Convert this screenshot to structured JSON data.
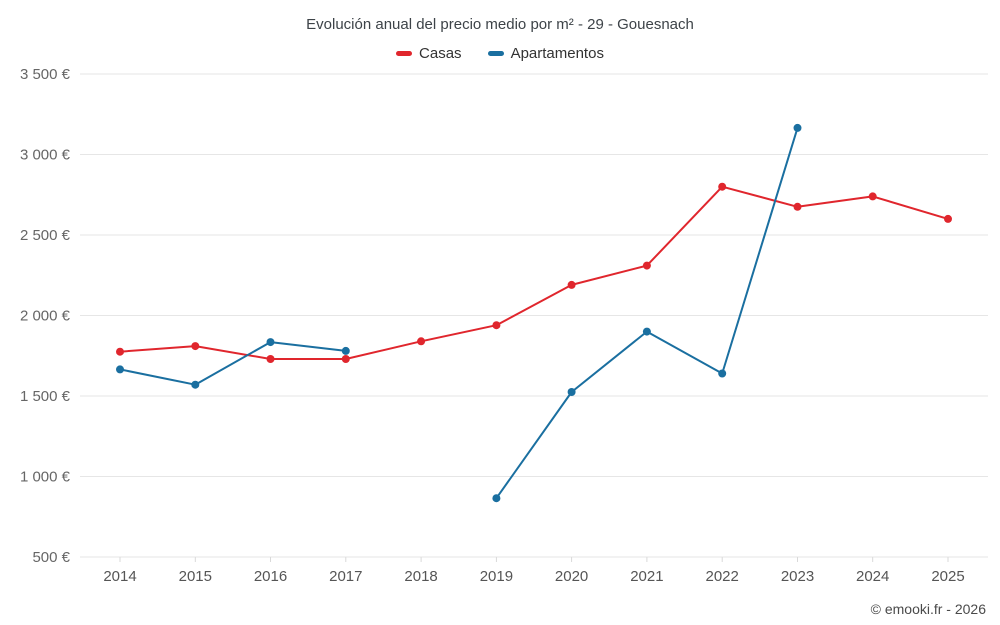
{
  "header": {
    "title": "Evolución anual del precio medio por m² - 29 - Gouesnach"
  },
  "legend": [
    {
      "label": "Casas",
      "color": "#e0262d"
    },
    {
      "label": "Apartamentos",
      "color": "#1a6fa0"
    }
  ],
  "footer": {
    "credit": "© emooki.fr - 2026"
  },
  "chart_data": {
    "type": "line",
    "title": "Evolución anual del precio medio por m² - 29 - Gouesnach",
    "categories": [
      "2014",
      "2015",
      "2016",
      "2017",
      "2018",
      "2019",
      "2020",
      "2021",
      "2022",
      "2023",
      "2024",
      "2025"
    ],
    "series": [
      {
        "name": "Casas",
        "color": "#e0262d",
        "values": [
          1775,
          1810,
          1730,
          1730,
          1840,
          1940,
          2190,
          2310,
          2800,
          2675,
          2740,
          2600
        ]
      },
      {
        "name": "Apartamentos",
        "color": "#1a6fa0",
        "values": [
          1665,
          1570,
          1835,
          1780,
          null,
          865,
          1525,
          1900,
          1640,
          3165,
          null,
          null
        ]
      }
    ],
    "xlabel": "",
    "ylabel": "",
    "ylim": [
      500,
      3500
    ],
    "yticks": [
      3500,
      3000,
      2500,
      2000,
      1500,
      1000,
      500
    ],
    "ytick_labels": [
      "3 500 €",
      "3 000 €",
      "2 500 €",
      "2 000 €",
      "1 500 €",
      "1 000 €",
      "500 €"
    ],
    "grid": "horizontal",
    "legend_position": "top"
  }
}
